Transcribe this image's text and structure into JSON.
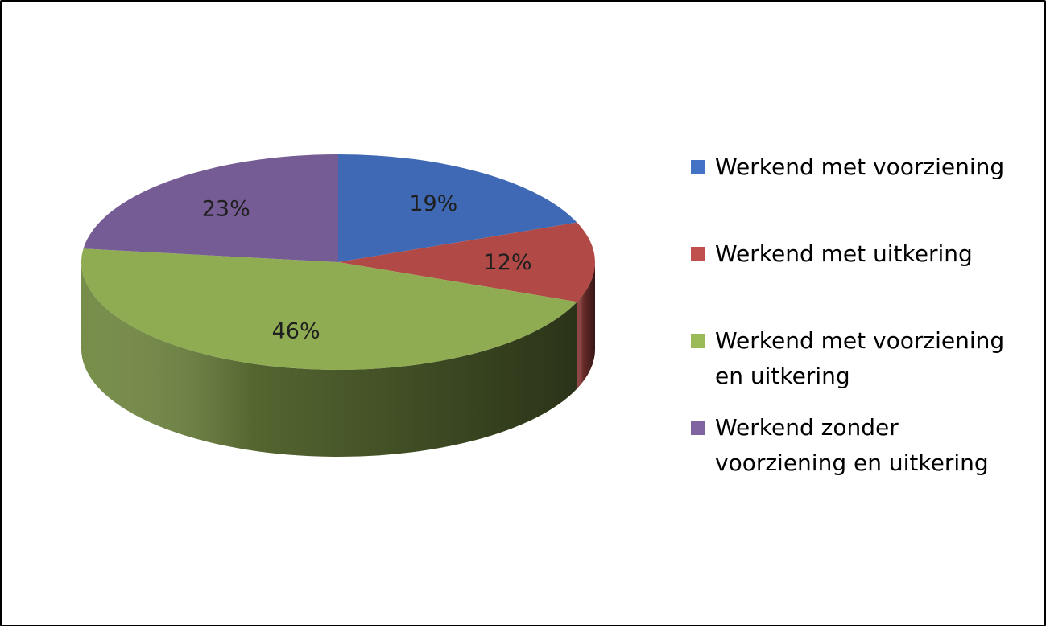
{
  "chart_data": {
    "type": "pie",
    "title": "",
    "slices": [
      {
        "label": "Werkend met voorziening",
        "value": 19,
        "display": "19%",
        "color": "#4472C4"
      },
      {
        "label": "Werkend met uitkering",
        "value": 12,
        "display": "12%",
        "color": "#C0504D"
      },
      {
        "label": "Werkend met voorziening en uitkering",
        "value": 46,
        "display": "46%",
        "color": "#9BBB59"
      },
      {
        "label": "Werkend zonder voorziening en uitkering",
        "value": 23,
        "display": "23%",
        "color": "#8064A2"
      }
    ],
    "legend_position": "right",
    "style": "3d-pie"
  }
}
